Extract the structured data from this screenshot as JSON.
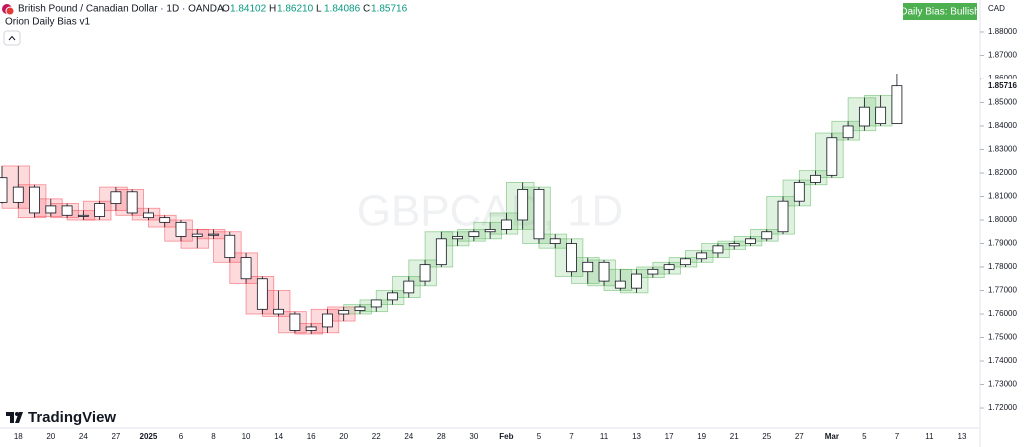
{
  "chart_data": {
    "type": "candlestick",
    "title": "British Pound / Canadian Dollar · 1D · OANDA",
    "ohlc_header": {
      "labels": [
        "O",
        "H",
        "L",
        "C"
      ],
      "values": [
        "1.84102",
        "1.86210",
        "1.84086",
        "1.85716"
      ]
    },
    "indicator": "Orion Daily Bias v1",
    "badge": "Daily Bias: Bullish",
    "currency": "CAD",
    "watermark": "GBPCAD, 1D",
    "brand": "TradingView",
    "categories": [
      null,
      "18",
      null,
      "20",
      null,
      "24",
      null,
      "27",
      null,
      "2025",
      null,
      "6",
      null,
      "8",
      null,
      "10",
      null,
      "14",
      null,
      "16",
      null,
      "20",
      null,
      "22",
      null,
      "24",
      null,
      "28",
      null,
      "30",
      null,
      "Feb",
      null,
      "5",
      null,
      "7",
      null,
      "11",
      null,
      "13",
      null,
      "17",
      null,
      "19",
      null,
      "21",
      null,
      "25",
      null,
      "27",
      null,
      "Mar",
      null,
      "5",
      null,
      "7",
      null,
      "11",
      null,
      "13"
    ],
    "open": [
      1.818,
      1.8075,
      1.814,
      1.803,
      1.806,
      1.802,
      1.8015,
      1.807,
      1.812,
      1.803,
      1.801,
      1.799,
      1.793,
      1.794,
      1.7935,
      1.784,
      1.775,
      1.762,
      1.76,
      1.753,
      1.7545,
      1.76,
      1.7615,
      1.763,
      1.766,
      1.769,
      1.774,
      1.781,
      1.792,
      1.793,
      1.795,
      1.796,
      1.8,
      1.813,
      1.792,
      1.79,
      1.778,
      1.782,
      1.774,
      1.771,
      1.777,
      1.779,
      1.781,
      1.7835,
      1.786,
      1.789,
      1.79,
      1.792,
      1.795,
      1.808,
      1.816,
      1.819,
      1.835,
      1.84,
      1.848,
      1.84102,
      null,
      null,
      null,
      null
    ],
    "high": [
      1.823,
      1.823,
      1.815,
      1.809,
      1.807,
      1.804,
      1.808,
      1.814,
      1.813,
      1.805,
      1.802,
      1.8,
      1.796,
      1.796,
      1.795,
      1.786,
      1.776,
      1.77,
      1.761,
      1.756,
      1.762,
      1.763,
      1.764,
      1.766,
      1.77,
      1.776,
      1.783,
      1.795,
      1.795,
      1.796,
      1.799,
      1.803,
      1.816,
      1.814,
      1.794,
      1.792,
      1.784,
      1.783,
      1.779,
      1.779,
      1.78,
      1.782,
      1.784,
      1.787,
      1.79,
      1.791,
      1.793,
      1.796,
      1.81,
      1.817,
      1.821,
      1.837,
      1.842,
      1.852,
      1.853,
      1.8621,
      null,
      null,
      null,
      null
    ],
    "low": [
      1.807,
      1.805,
      1.801,
      1.8015,
      1.801,
      1.8,
      1.8,
      1.804,
      1.802,
      1.8,
      1.797,
      1.791,
      1.788,
      1.792,
      1.782,
      1.773,
      1.76,
      1.759,
      1.752,
      1.7515,
      1.752,
      1.757,
      1.76,
      1.761,
      1.764,
      1.767,
      1.772,
      1.78,
      1.789,
      1.791,
      1.792,
      1.794,
      1.796,
      1.79,
      1.788,
      1.776,
      1.773,
      1.772,
      1.77,
      1.769,
      1.7755,
      1.777,
      1.78,
      1.782,
      1.784,
      1.7875,
      1.789,
      1.791,
      1.794,
      1.806,
      1.815,
      1.818,
      1.834,
      1.838,
      1.84,
      1.84086,
      null,
      null,
      null,
      null
    ],
    "close": [
      1.8075,
      1.814,
      1.803,
      1.806,
      1.802,
      1.8015,
      1.807,
      1.812,
      1.803,
      1.801,
      1.799,
      1.793,
      1.794,
      1.7935,
      1.784,
      1.775,
      1.762,
      1.76,
      1.753,
      1.7545,
      1.76,
      1.7615,
      1.763,
      1.766,
      1.769,
      1.774,
      1.781,
      1.792,
      1.793,
      1.795,
      1.796,
      1.8,
      1.813,
      1.792,
      1.79,
      1.778,
      1.782,
      1.774,
      1.771,
      1.777,
      1.779,
      1.781,
      1.7835,
      1.786,
      1.789,
      1.79,
      1.792,
      1.795,
      1.808,
      1.816,
      1.819,
      1.835,
      1.84,
      1.848,
      1.841,
      1.85716,
      null,
      null,
      null,
      null
    ],
    "box_colors": [
      null,
      "#f23645",
      "#f23645",
      "#f23645",
      "#f23645",
      "#f23645",
      "#f23645",
      "#f23645",
      "#f23645",
      "#f23645",
      "#f23645",
      "#f23645",
      "#f23645",
      "#f23645",
      "#f23645",
      "#f23645",
      "#f23645",
      "#f23645",
      "#f23645",
      "#f23645",
      "#f23645",
      "#f23645",
      "#4caf50",
      "#4caf50",
      "#4caf50",
      "#4caf50",
      "#4caf50",
      "#4caf50",
      "#4caf50",
      "#4caf50",
      "#4caf50",
      "#4caf50",
      "#4caf50",
      "#4caf50",
      "#4caf50",
      "#4caf50",
      "#4caf50",
      "#4caf50",
      "#4caf50",
      "#4caf50",
      "#4caf50",
      "#4caf50",
      "#4caf50",
      "#4caf50",
      "#4caf50",
      "#4caf50",
      "#4caf50",
      "#4caf50",
      "#4caf50",
      "#4caf50",
      "#4caf50",
      "#4caf50",
      "#4caf50",
      "#4caf50",
      "#4caf50",
      null,
      null,
      null,
      null,
      null
    ],
    "candle_color": "#131722",
    "ylim": [
      1.7115,
      1.8902
    ],
    "yticks": [
      {
        "value": 1.72,
        "label": "1.72000"
      },
      {
        "value": 1.73,
        "label": "1.73000"
      },
      {
        "value": 1.74,
        "label": "1.74000"
      },
      {
        "value": 1.75,
        "label": "1.75000"
      },
      {
        "value": 1.76,
        "label": "1.76000"
      },
      {
        "value": 1.77,
        "label": "1.77000"
      },
      {
        "value": 1.78,
        "label": "1.78000"
      },
      {
        "value": 1.79,
        "label": "1.79000"
      },
      {
        "value": 1.8,
        "label": "1.80000"
      },
      {
        "value": 1.81,
        "label": "1.81000"
      },
      {
        "value": 1.82,
        "label": "1.82000"
      },
      {
        "value": 1.83,
        "label": "1.83000"
      },
      {
        "value": 1.84,
        "label": "1.84000"
      },
      {
        "value": 1.85,
        "label": "1.85000"
      },
      {
        "value": 1.86,
        "label": "1.86000"
      },
      {
        "value": 1.87,
        "label": "1.87000"
      },
      {
        "value": 1.88,
        "label": "1.88000"
      }
    ],
    "grid": false
  }
}
